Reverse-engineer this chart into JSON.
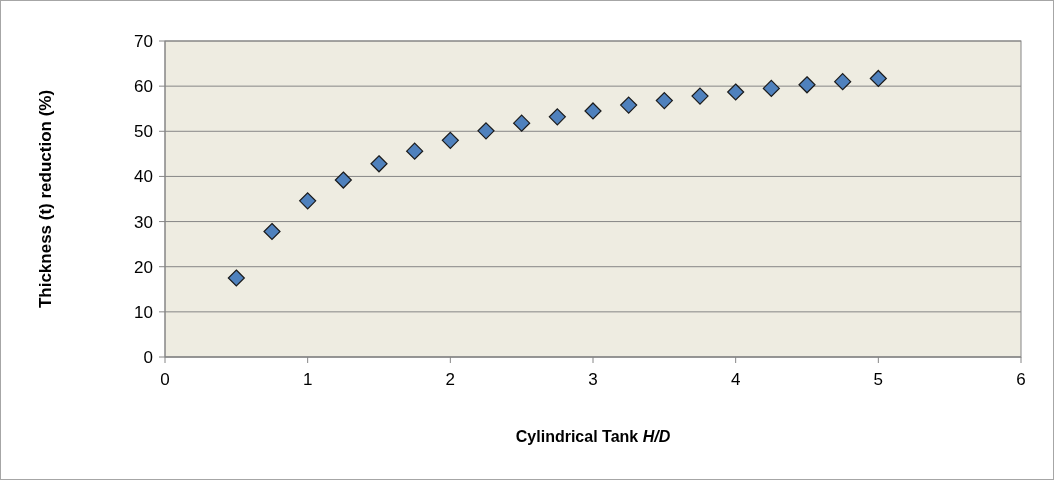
{
  "chart_data": {
    "type": "scatter",
    "xlabel": "Cylindrical Tank H/D",
    "ylabel": "Thickness (t) reduction (%)",
    "x": [
      0.5,
      0.75,
      1,
      1.25,
      1.5,
      1.75,
      2,
      2.25,
      2.5,
      2.75,
      3,
      3.25,
      3.5,
      3.75,
      4,
      4.25,
      4.5,
      4.75,
      5
    ],
    "series": [
      {
        "color": "#4f81bd",
        "values": [
          17.5,
          27.8,
          34.6,
          39.2,
          42.8,
          45.6,
          48,
          50.1,
          51.8,
          53.2,
          54.5,
          55.8,
          56.8,
          57.8,
          58.7,
          59.5,
          60.3,
          61,
          61.7
        ]
      }
    ],
    "xlim": [
      0,
      6
    ],
    "xticks": [
      0,
      1,
      2,
      3,
      4,
      5,
      6
    ],
    "ylim": [
      0,
      70
    ],
    "yticks": [
      0,
      10,
      20,
      30,
      40,
      50,
      60,
      70
    ],
    "grid": "y",
    "marker": "diamond"
  }
}
